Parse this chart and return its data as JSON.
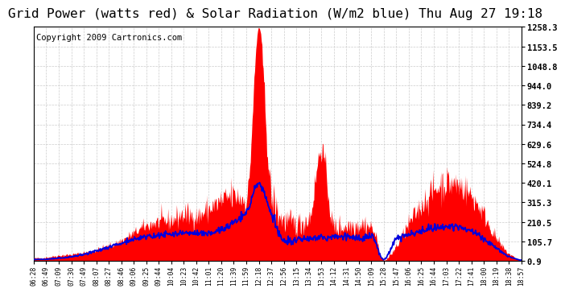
{
  "title": "Grid Power (watts red) & Solar Radiation (W/m2 blue) Thu Aug 27 19:18",
  "copyright": "Copyright 2009 Cartronics.com",
  "background_color": "#ffffff",
  "grid_color": "#cccccc",
  "yticks": [
    0.9,
    105.7,
    210.5,
    315.3,
    420.1,
    524.8,
    629.6,
    734.4,
    839.2,
    944.0,
    1048.8,
    1153.5,
    1258.3
  ],
  "xtick_labels": [
    "06:28",
    "06:49",
    "07:09",
    "07:30",
    "07:49",
    "08:07",
    "08:27",
    "08:46",
    "09:06",
    "09:25",
    "09:44",
    "10:04",
    "10:23",
    "10:42",
    "11:01",
    "11:20",
    "11:39",
    "11:59",
    "12:18",
    "12:37",
    "12:56",
    "13:15",
    "13:34",
    "13:53",
    "14:12",
    "14:31",
    "14:50",
    "15:09",
    "15:28",
    "15:47",
    "16:06",
    "16:25",
    "16:44",
    "17:03",
    "17:22",
    "17:41",
    "18:00",
    "18:19",
    "18:38",
    "18:57"
  ],
  "ymin": 0.9,
  "ymax": 1258.3,
  "red_fill_color": "#ff0000",
  "blue_line_color": "#0000dd",
  "title_fontsize": 11.5,
  "copyright_fontsize": 7.5
}
